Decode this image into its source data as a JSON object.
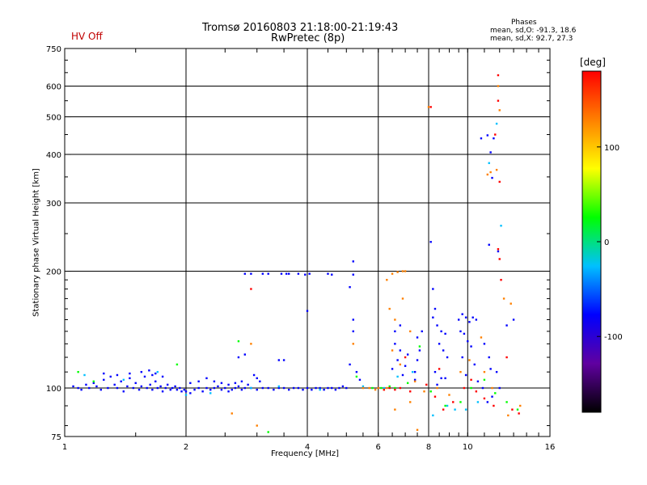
{
  "header": {
    "title_line1": "Tromsø 20160803 21:18:00-21:19:43",
    "title_line2": "RwPretec (8p)",
    "hv_status": "HV Off",
    "phases_title": "Phases",
    "phases_o": "mean, sd,O: -91.3, 18.6",
    "phases_x": "mean, sd,X: 92.7, 27.3"
  },
  "chart_data": {
    "type": "scatter",
    "title": "Tromsø 20160803 21:18:00-21:19:43",
    "subtitle": "RwPretec (8p)",
    "xlabel": "Frequency [MHz]",
    "ylabel": "Stationary phase Virtual Height [km]",
    "x_scale": "log",
    "y_scale": "log",
    "xlim": [
      1,
      16
    ],
    "ylim": [
      75,
      750
    ],
    "x_ticks": [
      1,
      2,
      4,
      6,
      8,
      10,
      16
    ],
    "y_ticks": [
      75,
      100,
      200,
      300,
      400,
      500,
      600,
      750
    ],
    "x_gridlines": [
      2,
      4,
      6,
      8,
      10
    ],
    "y_gridlines": [
      100,
      200,
      300,
      400,
      500,
      600
    ],
    "grid": true,
    "colorbar": {
      "unit": "[deg]",
      "min": -180,
      "max": 180,
      "ticks": [
        -100,
        0,
        100
      ],
      "colormap": [
        "#000000",
        "#6000a0",
        "#0000ff",
        "#00c0ff",
        "#00ff00",
        "#ffff00",
        "#ff8000",
        "#ff0000"
      ]
    },
    "series": [
      {
        "phase_deg": -100,
        "points": [
          [
            1.05,
            101
          ],
          [
            1.08,
            100
          ],
          [
            1.1,
            99
          ],
          [
            1.13,
            102
          ],
          [
            1.15,
            100
          ],
          [
            1.18,
            103
          ],
          [
            1.2,
            101
          ],
          [
            1.23,
            99
          ],
          [
            1.25,
            105
          ],
          [
            1.28,
            100
          ],
          [
            1.3,
            107
          ],
          [
            1.33,
            102
          ],
          [
            1.35,
            100
          ],
          [
            1.38,
            104
          ],
          [
            1.4,
            98
          ],
          [
            1.43,
            101
          ],
          [
            1.45,
            106
          ],
          [
            1.48,
            100
          ],
          [
            1.5,
            103
          ],
          [
            1.53,
            99
          ],
          [
            1.55,
            101
          ],
          [
            1.58,
            107
          ],
          [
            1.6,
            100
          ],
          [
            1.63,
            102
          ],
          [
            1.65,
            99
          ],
          [
            1.68,
            104
          ],
          [
            1.7,
            100
          ],
          [
            1.73,
            101
          ],
          [
            1.75,
            98
          ],
          [
            1.78,
            100
          ],
          [
            1.8,
            102
          ],
          [
            1.83,
            99
          ],
          [
            1.85,
            100
          ],
          [
            1.88,
            101
          ],
          [
            1.9,
            99
          ],
          [
            1.93,
            100
          ],
          [
            1.95,
            98
          ],
          [
            1.98,
            99
          ],
          [
            2.0,
            98
          ],
          [
            2.05,
            97
          ],
          [
            2.1,
            99
          ],
          [
            2.15,
            100
          ],
          [
            2.2,
            98
          ],
          [
            2.25,
            100
          ],
          [
            2.3,
            99
          ],
          [
            2.35,
            100
          ],
          [
            2.4,
            101
          ],
          [
            2.45,
            99
          ],
          [
            2.5,
            100
          ],
          [
            2.55,
            98
          ],
          [
            2.6,
            99
          ],
          [
            2.65,
            100
          ],
          [
            2.7,
            101
          ],
          [
            2.75,
            99
          ],
          [
            2.8,
            100
          ],
          [
            2.9,
            100
          ],
          [
            3.0,
            99
          ],
          [
            3.1,
            100
          ],
          [
            3.2,
            100
          ],
          [
            3.3,
            99
          ],
          [
            3.4,
            100
          ],
          [
            3.5,
            100
          ],
          [
            3.6,
            99
          ],
          [
            3.7,
            100
          ],
          [
            3.8,
            100
          ],
          [
            3.9,
            99
          ],
          [
            4.0,
            100
          ],
          [
            4.1,
            99
          ],
          [
            4.2,
            100
          ],
          [
            4.3,
            100
          ],
          [
            4.4,
            99
          ],
          [
            4.5,
            100
          ],
          [
            4.6,
            100
          ],
          [
            4.7,
            99
          ],
          [
            4.8,
            100
          ],
          [
            4.9,
            101
          ],
          [
            5.0,
            100
          ],
          [
            1.25,
            109
          ],
          [
            1.35,
            108
          ],
          [
            1.45,
            109
          ],
          [
            1.55,
            110
          ],
          [
            1.65,
            108
          ],
          [
            1.75,
            107
          ],
          [
            1.62,
            111
          ],
          [
            1.68,
            109
          ],
          [
            2.05,
            103
          ],
          [
            2.15,
            104
          ],
          [
            2.25,
            106
          ],
          [
            2.35,
            104
          ],
          [
            2.45,
            103
          ],
          [
            2.55,
            102
          ],
          [
            2.65,
            103
          ],
          [
            2.75,
            104
          ],
          [
            2.85,
            102
          ],
          [
            2.8,
            197
          ],
          [
            2.9,
            197
          ],
          [
            3.1,
            197
          ],
          [
            3.2,
            197
          ],
          [
            3.45,
            197
          ],
          [
            3.55,
            197
          ],
          [
            3.6,
            197
          ],
          [
            3.8,
            197
          ],
          [
            3.95,
            196
          ],
          [
            4.05,
            197
          ],
          [
            4.5,
            197
          ],
          [
            4.6,
            196
          ],
          [
            5.2,
            196
          ],
          [
            2.7,
            120
          ],
          [
            2.8,
            122
          ],
          [
            3.4,
            118
          ],
          [
            3.5,
            118
          ],
          [
            5.2,
            212
          ],
          [
            5.2,
            150
          ],
          [
            5.2,
            140
          ],
          [
            5.1,
            182
          ],
          [
            4.0,
            158
          ],
          [
            3.0,
            106
          ],
          [
            3.05,
            104
          ],
          [
            2.95,
            108
          ],
          [
            5.1,
            115
          ],
          [
            5.3,
            110
          ],
          [
            5.4,
            105
          ],
          [
            6.6,
            130
          ],
          [
            6.8,
            125
          ],
          [
            6.7,
            118
          ],
          [
            7.0,
            114
          ],
          [
            6.5,
            112
          ],
          [
            6.9,
            108
          ],
          [
            7.1,
            122
          ],
          [
            6.6,
            140
          ],
          [
            6.8,
            145
          ],
          [
            7.4,
            110
          ],
          [
            7.5,
            118
          ],
          [
            7.6,
            125
          ],
          [
            7.5,
            135
          ],
          [
            7.7,
            140
          ],
          [
            7.4,
            105
          ],
          [
            8.1,
            238
          ],
          [
            8.2,
            180
          ],
          [
            8.3,
            160
          ],
          [
            8.2,
            152
          ],
          [
            8.4,
            145
          ],
          [
            8.6,
            140
          ],
          [
            8.8,
            138
          ],
          [
            8.5,
            130
          ],
          [
            8.7,
            125
          ],
          [
            8.9,
            120
          ],
          [
            8.3,
            110
          ],
          [
            8.6,
            106
          ],
          [
            8.8,
            106
          ],
          [
            8.4,
            102
          ],
          [
            9.5,
            150
          ],
          [
            9.7,
            155
          ],
          [
            9.9,
            152
          ],
          [
            10.1,
            148
          ],
          [
            10.3,
            152
          ],
          [
            10.5,
            150
          ],
          [
            9.6,
            140
          ],
          [
            9.8,
            138
          ],
          [
            10.0,
            132
          ],
          [
            10.2,
            128
          ],
          [
            9.7,
            120
          ],
          [
            10.4,
            115
          ],
          [
            9.9,
            108
          ],
          [
            10.6,
            104
          ],
          [
            10.8,
            440
          ],
          [
            11.2,
            448
          ],
          [
            11.4,
            405
          ],
          [
            11.5,
            348
          ],
          [
            11.6,
            440
          ],
          [
            11.3,
            234
          ],
          [
            11.9,
            225
          ],
          [
            11.0,
            130
          ],
          [
            11.3,
            120
          ],
          [
            11.8,
            110
          ],
          [
            12.0,
            100
          ],
          [
            11.5,
            95
          ],
          [
            11.2,
            92
          ],
          [
            12.5,
            145
          ],
          [
            13.0,
            150
          ],
          [
            10.9,
            100
          ],
          [
            11.4,
            112
          ]
        ]
      },
      {
        "phase_deg": -20,
        "points": [
          [
            1.12,
            108
          ],
          [
            1.4,
            105
          ],
          [
            1.7,
            110
          ],
          [
            2.0,
            96
          ],
          [
            2.3,
            97
          ],
          [
            2.9,
            100
          ],
          [
            3.4,
            101
          ],
          [
            4.3,
            99
          ],
          [
            5.5,
            101
          ],
          [
            6.2,
            100
          ],
          [
            6.7,
            107
          ],
          [
            7.3,
            110
          ],
          [
            8.2,
            85
          ],
          [
            8.9,
            90
          ],
          [
            9.3,
            88
          ],
          [
            9.9,
            88
          ],
          [
            10.6,
            92
          ],
          [
            11.8,
            480
          ],
          [
            12.1,
            262
          ],
          [
            11.3,
            380
          ]
        ]
      },
      {
        "phase_deg": 40,
        "points": [
          [
            1.08,
            110
          ],
          [
            1.18,
            104
          ],
          [
            1.9,
            115
          ],
          [
            2.7,
            132
          ],
          [
            3.2,
            77
          ],
          [
            5.3,
            107
          ],
          [
            5.8,
            100
          ],
          [
            6.1,
            100
          ],
          [
            6.4,
            101
          ],
          [
            6.6,
            100
          ],
          [
            7.1,
            103
          ],
          [
            7.6,
            128
          ],
          [
            8.1,
            98
          ],
          [
            8.8,
            90
          ],
          [
            9.6,
            92
          ],
          [
            10.2,
            100
          ],
          [
            11.0,
            105
          ],
          [
            11.7,
            97
          ],
          [
            12.5,
            92
          ],
          [
            13.3,
            88
          ]
        ]
      },
      {
        "phase_deg": 110,
        "points": [
          [
            1.02,
            74
          ],
          [
            2.6,
            86
          ],
          [
            2.9,
            130
          ],
          [
            3.0,
            80
          ],
          [
            5.5,
            100
          ],
          [
            5.7,
            100
          ],
          [
            5.9,
            99
          ],
          [
            6.0,
            100
          ],
          [
            6.2,
            99
          ],
          [
            6.3,
            100
          ],
          [
            6.5,
            197
          ],
          [
            6.7,
            199
          ],
          [
            6.9,
            200
          ],
          [
            7.0,
            200
          ],
          [
            6.3,
            190
          ],
          [
            6.9,
            170
          ],
          [
            6.4,
            160
          ],
          [
            6.6,
            150
          ],
          [
            7.2,
            140
          ],
          [
            6.5,
            125
          ],
          [
            6.8,
            115
          ],
          [
            7.4,
            104
          ],
          [
            6.6,
            88
          ],
          [
            7.2,
            92
          ],
          [
            7.8,
            98
          ],
          [
            8.4,
            100
          ],
          [
            9.0,
            96
          ],
          [
            9.6,
            110
          ],
          [
            10.1,
            118
          ],
          [
            10.8,
            135
          ],
          [
            11.2,
            355
          ],
          [
            11.4,
            360
          ],
          [
            11.8,
            365
          ],
          [
            11.9,
            600
          ],
          [
            12.0,
            520
          ],
          [
            12.3,
            170
          ],
          [
            12.8,
            165
          ],
          [
            11.0,
            110
          ],
          [
            11.5,
            100
          ],
          [
            12.6,
            85
          ],
          [
            13.5,
            90
          ],
          [
            8.0,
            530
          ],
          [
            5.2,
            130
          ],
          [
            7.5,
            78
          ]
        ]
      },
      {
        "phase_deg": 160,
        "points": [
          [
            2.9,
            180
          ],
          [
            6.2,
            99
          ],
          [
            6.4,
            100
          ],
          [
            6.6,
            99
          ],
          [
            6.8,
            100
          ],
          [
            7.2,
            98
          ],
          [
            7.9,
            102
          ],
          [
            8.1,
            530
          ],
          [
            8.3,
            95
          ],
          [
            8.7,
            88
          ],
          [
            9.2,
            92
          ],
          [
            9.8,
            100
          ],
          [
            10.5,
            98
          ],
          [
            11.0,
            94
          ],
          [
            11.6,
            90
          ],
          [
            11.9,
            640
          ],
          [
            11.9,
            550
          ],
          [
            12.0,
            340
          ],
          [
            11.9,
            228
          ],
          [
            12.0,
            215
          ],
          [
            12.1,
            190
          ],
          [
            12.5,
            120
          ],
          [
            11.7,
            450
          ],
          [
            12.9,
            88
          ],
          [
            13.4,
            86
          ],
          [
            7.0,
            120
          ],
          [
            8.5,
            112
          ],
          [
            10.2,
            105
          ]
        ]
      }
    ]
  }
}
